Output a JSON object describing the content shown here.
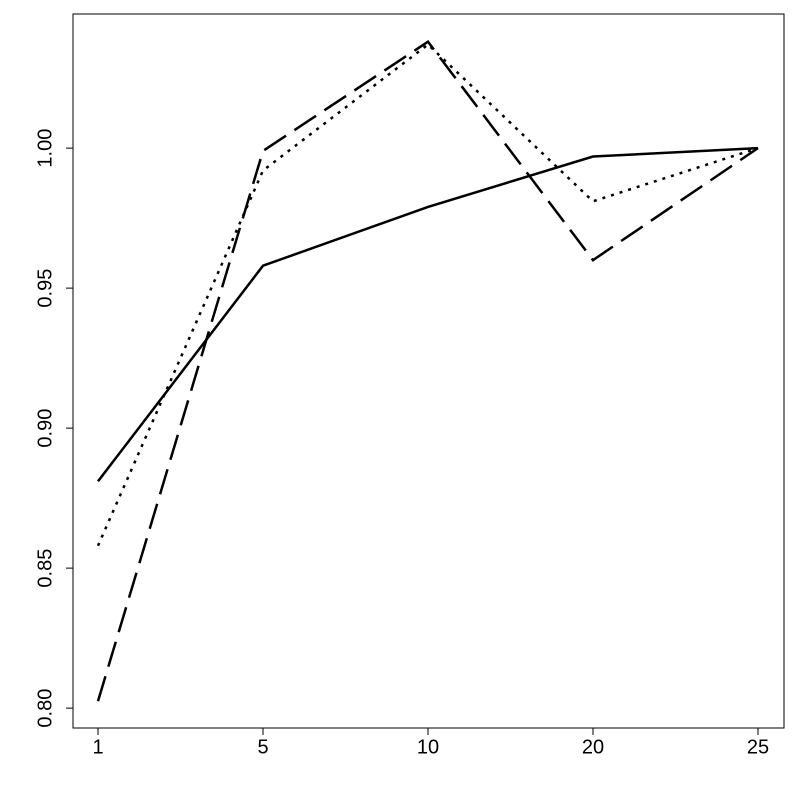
{
  "chart_data": {
    "type": "line",
    "categories": [
      "1",
      "5",
      "10",
      "20",
      "25"
    ],
    "series": [
      {
        "color": "#000000",
        "dash": "solid",
        "values": [
          0.881,
          0.958,
          0.979,
          0.997,
          1.0
        ]
      },
      {
        "color": "#000000",
        "dash": "dotted",
        "values": [
          0.858,
          0.992,
          1.037,
          0.981,
          1.0
        ]
      },
      {
        "color": "#000000",
        "dash": "dashed",
        "values": [
          0.8025,
          0.999,
          1.038,
          0.96,
          1.0
        ]
      }
    ],
    "ylim": [
      0.7929,
      1.0479
    ],
    "yticks": [
      {
        "value": 0.8,
        "label": "0.80"
      },
      {
        "value": 0.85,
        "label": "0.85"
      },
      {
        "value": 0.9,
        "label": "0.90"
      },
      {
        "value": 0.95,
        "label": "0.95"
      },
      {
        "value": 1.0,
        "label": "1.00"
      }
    ],
    "grid": false
  }
}
